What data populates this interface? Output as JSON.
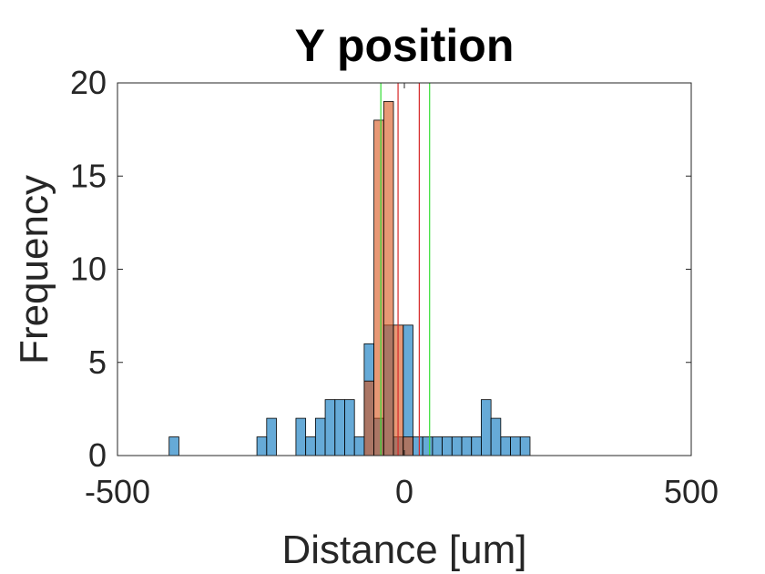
{
  "chart_data": {
    "type": "bar",
    "title": "Y position",
    "xlabel": "Distance [um]",
    "ylabel": "Frequency",
    "xlim": [
      -500,
      500
    ],
    "ylim": [
      0,
      20
    ],
    "xticks": [
      "-500",
      "0",
      "500"
    ],
    "yticks": [
      "0",
      "5",
      "10",
      "15",
      "20"
    ],
    "grid": false,
    "legend": "none",
    "bin_width": 17,
    "series": [
      {
        "color": "#0072BD",
        "bins": [
          {
            "x": -410,
            "count": 1
          },
          {
            "x": -257,
            "count": 1
          },
          {
            "x": -240,
            "count": 2
          },
          {
            "x": -189,
            "count": 2
          },
          {
            "x": -172,
            "count": 1
          },
          {
            "x": -155,
            "count": 2
          },
          {
            "x": -138,
            "count": 3
          },
          {
            "x": -121,
            "count": 3
          },
          {
            "x": -104,
            "count": 3
          },
          {
            "x": -87,
            "count": 1
          },
          {
            "x": -70,
            "count": 6
          },
          {
            "x": -53,
            "count": 2
          },
          {
            "x": -36,
            "count": 7
          },
          {
            "x": -19,
            "count": 1
          },
          {
            "x": -2,
            "count": 7
          },
          {
            "x": 15,
            "count": 1
          },
          {
            "x": 32,
            "count": 1
          },
          {
            "x": 49,
            "count": 1
          },
          {
            "x": 66,
            "count": 1
          },
          {
            "x": 83,
            "count": 1
          },
          {
            "x": 100,
            "count": 1
          },
          {
            "x": 117,
            "count": 1
          },
          {
            "x": 134,
            "count": 3
          },
          {
            "x": 151,
            "count": 2
          },
          {
            "x": 168,
            "count": 1
          },
          {
            "x": 185,
            "count": 1
          },
          {
            "x": 202,
            "count": 1
          }
        ]
      },
      {
        "color": "#D95319",
        "bins": [
          {
            "x": -70,
            "count": 4
          },
          {
            "x": -53,
            "count": 18
          },
          {
            "x": -36,
            "count": 19
          },
          {
            "x": -19,
            "count": 7
          },
          {
            "x": -2,
            "count": 1
          }
        ]
      }
    ],
    "reference_lines": [
      {
        "x": -41,
        "color": "#33dd33"
      },
      {
        "x": 44,
        "color": "#33dd33"
      },
      {
        "x": -11,
        "color": "#d62728"
      },
      {
        "x": 26,
        "color": "#d62728"
      }
    ]
  }
}
